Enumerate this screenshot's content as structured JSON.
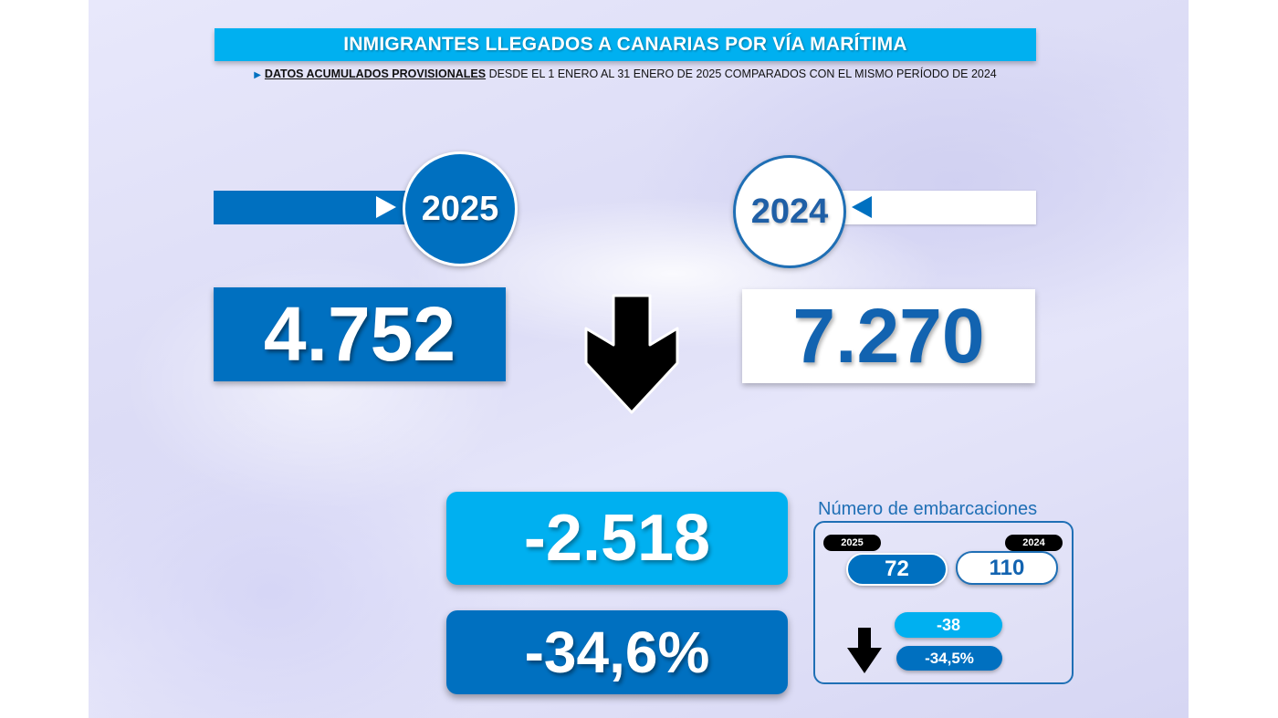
{
  "header": {
    "title": "INMIGRANTES LLEGADOS A CANARIAS POR VÍA MARÍTIMA",
    "subtitle_bold": "DATOS ACUMULADOS PROVISIONALES",
    "subtitle_rest": "DESDE EL 1 ENERO AL 31 ENERO DE 2025 COMPARADOS CON EL MISMO PERÍODO DE 2024"
  },
  "years": {
    "current": "2025",
    "previous": "2024"
  },
  "arrivals": {
    "current_value": "4.752",
    "previous_value": "7.270",
    "difference": "-2.518",
    "percent_change": "-34,6%",
    "trend_icon": "down-arrow"
  },
  "boats": {
    "label": "Número de embarcaciones",
    "year_current": "2025",
    "year_previous": "2024",
    "current_value": "72",
    "previous_value": "110",
    "difference": "-38",
    "percent_change": "-34,5%",
    "trend_icon": "down-arrow"
  },
  "colors": {
    "primary_blue": "#0070c0",
    "light_blue": "#00b0f0",
    "dark_text": "#1263b0"
  }
}
